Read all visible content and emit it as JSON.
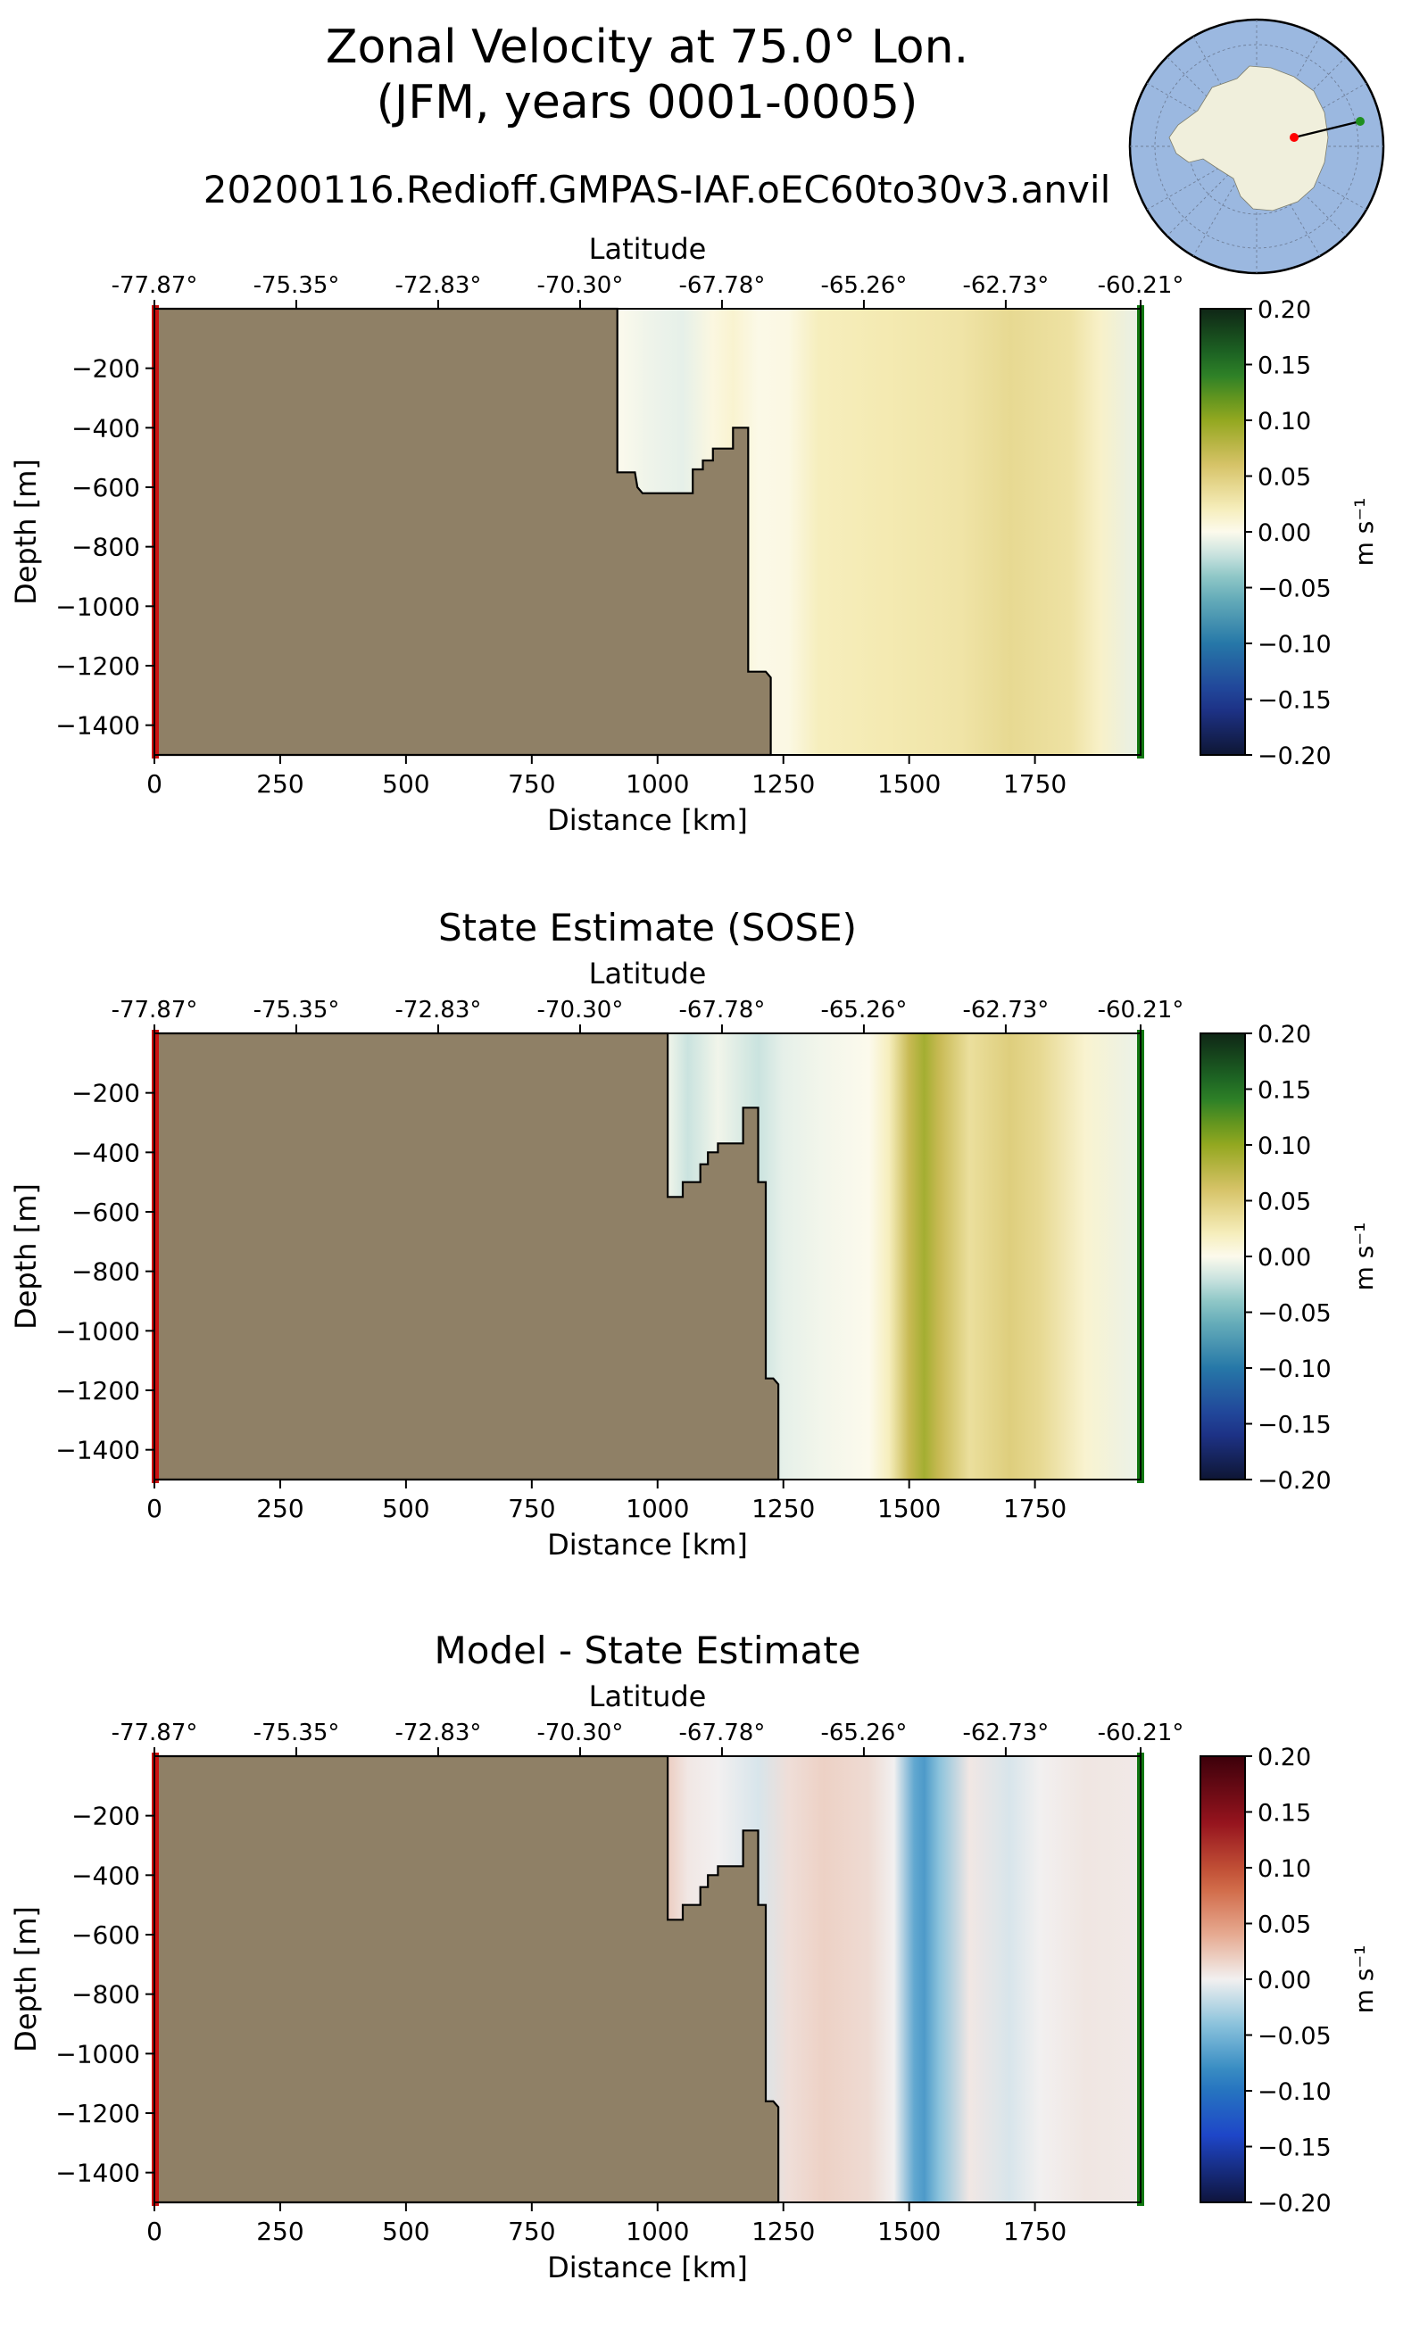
{
  "figure": {
    "title_line1": "Zonal Velocity at 75.0° Lon.",
    "title_line2": "(JFM, years 0001-0005)",
    "subtitle": "20200116.Redioff.GMPAS-IAF.oEC60to30v3.anvil"
  },
  "colors": {
    "land": "#8f8066",
    "start_marker": "#cc1111",
    "end_marker": "#117711",
    "ocean_map": "#9bb8e0",
    "antarctica": "#f0efdc"
  },
  "chart_data": [
    {
      "type": "heatmap",
      "title": "",
      "xlabel": "Distance [km]",
      "ylabel": "Depth [m]",
      "top_label": "Latitude",
      "xlim": [
        0,
        1960
      ],
      "ylim": [
        -1500,
        0
      ],
      "x_ticks": [
        0,
        250,
        500,
        750,
        1000,
        1250,
        1500,
        1750
      ],
      "y_ticks": [
        -200,
        -400,
        -600,
        -800,
        -1000,
        -1200,
        -1400
      ],
      "lat_tick_labels": [
        "-77.87°",
        "-75.35°",
        "-72.83°",
        "-70.30°",
        "-67.78°",
        "-65.26°",
        "-62.73°",
        "-60.21°"
      ],
      "lat_tick_km": [
        0,
        282,
        564,
        846,
        1128,
        1410,
        1692,
        1960
      ],
      "colorbar": {
        "label": "m s⁻¹",
        "min": -0.2,
        "max": 0.2,
        "ticks": [
          0.2,
          0.15,
          0.1,
          0.05,
          0.0,
          -0.05,
          -0.1,
          -0.15,
          -0.2
        ],
        "colormap": "velocity"
      },
      "bathymetry": [
        [
          0,
          0
        ],
        [
          920,
          0
        ],
        [
          920,
          -550
        ],
        [
          955,
          -550
        ],
        [
          960,
          -600
        ],
        [
          970,
          -620
        ],
        [
          1070,
          -620
        ],
        [
          1070,
          -540
        ],
        [
          1090,
          -540
        ],
        [
          1090,
          -510
        ],
        [
          1110,
          -510
        ],
        [
          1110,
          -470
        ],
        [
          1150,
          -470
        ],
        [
          1150,
          -400
        ],
        [
          1180,
          -400
        ],
        [
          1180,
          -1220
        ],
        [
          1215,
          -1220
        ],
        [
          1225,
          -1240
        ],
        [
          1225,
          -1500
        ],
        [
          0,
          -1500
        ]
      ],
      "velocity_profile": [
        {
          "x": 920,
          "v": 0.0
        },
        {
          "x": 980,
          "v": -0.006
        },
        {
          "x": 1050,
          "v": -0.01
        },
        {
          "x": 1110,
          "v": 0.005
        },
        {
          "x": 1150,
          "v": 0.012
        },
        {
          "x": 1200,
          "v": 0.002
        },
        {
          "x": 1260,
          "v": 0.004
        },
        {
          "x": 1320,
          "v": 0.02
        },
        {
          "x": 1450,
          "v": 0.025
        },
        {
          "x": 1600,
          "v": 0.03
        },
        {
          "x": 1700,
          "v": 0.04
        },
        {
          "x": 1820,
          "v": 0.032
        },
        {
          "x": 1880,
          "v": 0.015
        },
        {
          "x": 1960,
          "v": -0.01
        }
      ]
    },
    {
      "type": "heatmap",
      "title": "State Estimate (SOSE)",
      "xlabel": "Distance [km]",
      "ylabel": "Depth [m]",
      "top_label": "Latitude",
      "xlim": [
        0,
        1960
      ],
      "ylim": [
        -1500,
        0
      ],
      "x_ticks": [
        0,
        250,
        500,
        750,
        1000,
        1250,
        1500,
        1750
      ],
      "y_ticks": [
        -200,
        -400,
        -600,
        -800,
        -1000,
        -1200,
        -1400
      ],
      "lat_tick_labels": [
        "-77.87°",
        "-75.35°",
        "-72.83°",
        "-70.30°",
        "-67.78°",
        "-65.26°",
        "-62.73°",
        "-60.21°"
      ],
      "lat_tick_km": [
        0,
        282,
        564,
        846,
        1128,
        1410,
        1692,
        1960
      ],
      "colorbar": {
        "label": "m s⁻¹",
        "min": -0.2,
        "max": 0.2,
        "ticks": [
          0.2,
          0.15,
          0.1,
          0.05,
          0.0,
          -0.05,
          -0.1,
          -0.15,
          -0.2
        ],
        "colormap": "velocity"
      },
      "bathymetry": [
        [
          0,
          0
        ],
        [
          1020,
          0
        ],
        [
          1020,
          -550
        ],
        [
          1050,
          -550
        ],
        [
          1050,
          -500
        ],
        [
          1085,
          -500
        ],
        [
          1085,
          -440
        ],
        [
          1100,
          -440
        ],
        [
          1100,
          -400
        ],
        [
          1120,
          -400
        ],
        [
          1120,
          -370
        ],
        [
          1170,
          -370
        ],
        [
          1170,
          -250
        ],
        [
          1200,
          -250
        ],
        [
          1200,
          -500
        ],
        [
          1215,
          -500
        ],
        [
          1215,
          -1160
        ],
        [
          1230,
          -1160
        ],
        [
          1240,
          -1180
        ],
        [
          1240,
          -1500
        ],
        [
          0,
          -1500
        ]
      ],
      "velocity_profile": [
        {
          "x": 1020,
          "v": -0.005
        },
        {
          "x": 1060,
          "v": -0.02
        },
        {
          "x": 1120,
          "v": -0.005
        },
        {
          "x": 1200,
          "v": -0.02
        },
        {
          "x": 1250,
          "v": -0.01
        },
        {
          "x": 1330,
          "v": -0.004
        },
        {
          "x": 1420,
          "v": 0.0
        },
        {
          "x": 1460,
          "v": 0.02
        },
        {
          "x": 1500,
          "v": 0.07
        },
        {
          "x": 1530,
          "v": 0.09
        },
        {
          "x": 1560,
          "v": 0.07
        },
        {
          "x": 1620,
          "v": 0.035
        },
        {
          "x": 1700,
          "v": 0.05
        },
        {
          "x": 1760,
          "v": 0.04
        },
        {
          "x": 1850,
          "v": 0.012
        },
        {
          "x": 1960,
          "v": -0.008
        }
      ]
    },
    {
      "type": "heatmap",
      "title": "Model - State Estimate",
      "xlabel": "Distance [km]",
      "ylabel": "Depth [m]",
      "top_label": "Latitude",
      "xlim": [
        0,
        1960
      ],
      "ylim": [
        -1500,
        0
      ],
      "x_ticks": [
        0,
        250,
        500,
        750,
        1000,
        1250,
        1500,
        1750
      ],
      "y_ticks": [
        -200,
        -400,
        -600,
        -800,
        -1000,
        -1200,
        -1400
      ],
      "lat_tick_labels": [
        "-77.87°",
        "-75.35°",
        "-72.83°",
        "-70.30°",
        "-67.78°",
        "-65.26°",
        "-62.73°",
        "-60.21°"
      ],
      "lat_tick_km": [
        0,
        282,
        564,
        846,
        1128,
        1410,
        1692,
        1960
      ],
      "colorbar": {
        "label": "m s⁻¹",
        "min": -0.2,
        "max": 0.2,
        "ticks": [
          0.2,
          0.15,
          0.1,
          0.05,
          0.0,
          -0.05,
          -0.1,
          -0.15,
          -0.2
        ],
        "colormap": "difference"
      },
      "bathymetry": [
        [
          0,
          0
        ],
        [
          1020,
          0
        ],
        [
          1020,
          -550
        ],
        [
          1050,
          -550
        ],
        [
          1050,
          -500
        ],
        [
          1085,
          -500
        ],
        [
          1085,
          -440
        ],
        [
          1100,
          -440
        ],
        [
          1100,
          -400
        ],
        [
          1120,
          -400
        ],
        [
          1120,
          -370
        ],
        [
          1170,
          -370
        ],
        [
          1170,
          -250
        ],
        [
          1200,
          -250
        ],
        [
          1200,
          -500
        ],
        [
          1215,
          -500
        ],
        [
          1215,
          -1160
        ],
        [
          1230,
          -1160
        ],
        [
          1240,
          -1180
        ],
        [
          1240,
          -1500
        ],
        [
          0,
          -1500
        ]
      ],
      "velocity_profile": [
        {
          "x": 1020,
          "v": 0.02
        },
        {
          "x": 1060,
          "v": 0.005
        },
        {
          "x": 1120,
          "v": 0.0
        },
        {
          "x": 1200,
          "v": -0.01
        },
        {
          "x": 1260,
          "v": 0.01
        },
        {
          "x": 1330,
          "v": 0.018
        },
        {
          "x": 1420,
          "v": 0.012
        },
        {
          "x": 1470,
          "v": 0.0
        },
        {
          "x": 1510,
          "v": -0.06
        },
        {
          "x": 1530,
          "v": -0.07
        },
        {
          "x": 1560,
          "v": -0.04
        },
        {
          "x": 1620,
          "v": 0.005
        },
        {
          "x": 1700,
          "v": -0.01
        },
        {
          "x": 1760,
          "v": 0.0
        },
        {
          "x": 1850,
          "v": 0.006
        },
        {
          "x": 1960,
          "v": 0.004
        }
      ]
    }
  ]
}
